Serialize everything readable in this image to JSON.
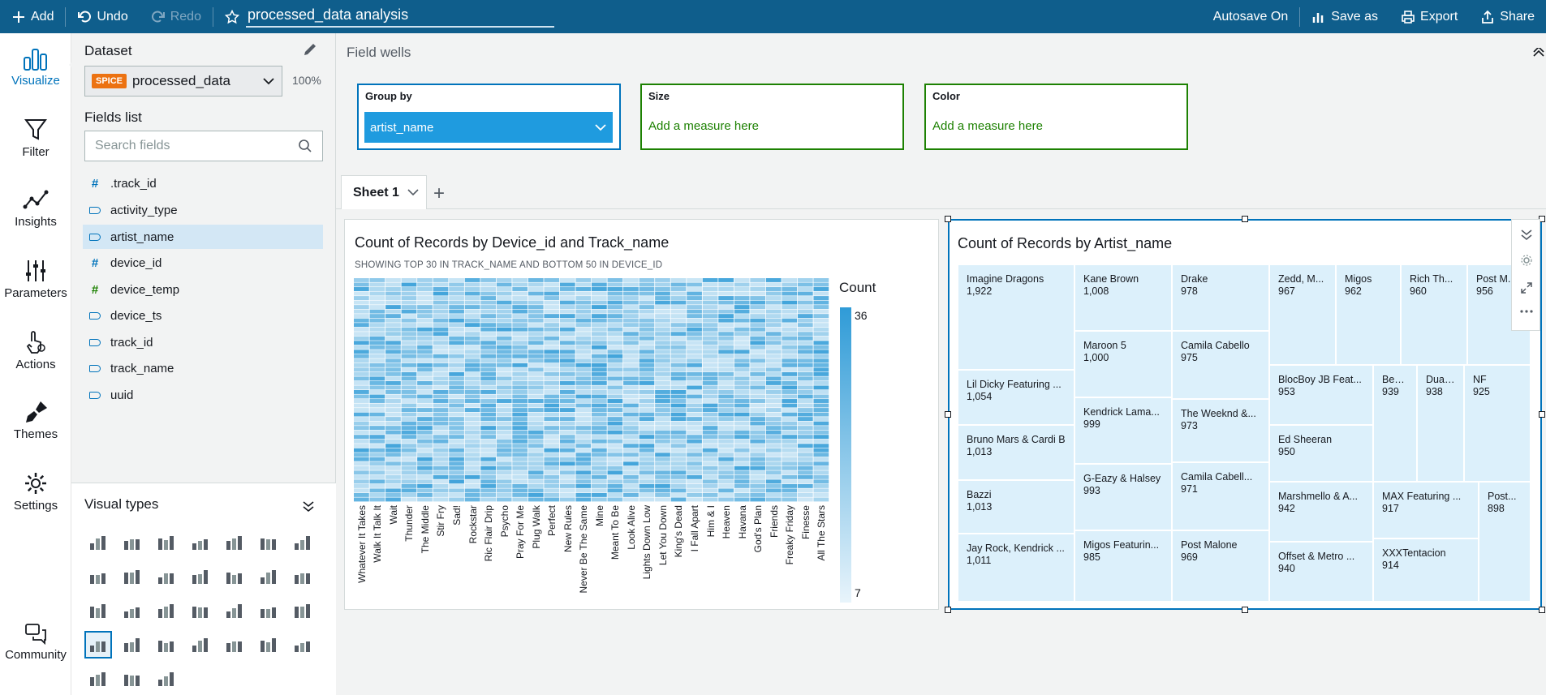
{
  "topbar": {
    "add": "Add",
    "undo": "Undo",
    "redo": "Redo",
    "title": "processed_data analysis",
    "autosave": "Autosave On",
    "save_as": "Save as",
    "export": "Export",
    "share": "Share"
  },
  "nav": {
    "visualize": "Visualize",
    "filter": "Filter",
    "insights": "Insights",
    "parameters": "Parameters",
    "actions": "Actions",
    "themes": "Themes",
    "settings": "Settings",
    "community": "Community"
  },
  "panel": {
    "dataset_label": "Dataset",
    "spice": "SPICE",
    "dataset_name": "processed_data",
    "spice_pct": "100%",
    "fields_label": "Fields list",
    "search_placeholder": "Search fields",
    "fields": [
      ".track_id",
      "activity_type",
      "artist_name",
      "device_id",
      "device_temp",
      "device_ts",
      "track_id",
      "track_name",
      "uuid"
    ],
    "visual_types_label": "Visual types"
  },
  "wells": {
    "title": "Field wells",
    "group_by_label": "Group by",
    "group_by_value": "artist_name",
    "size_label": "Size",
    "size_hint": "Add a measure here",
    "color_label": "Color",
    "color_hint": "Add a measure here"
  },
  "sheet": {
    "tab": "Sheet 1"
  },
  "heatmap": {
    "title": "Count of Records by Device_id and Track_name",
    "subtitle": "SHOWING TOP 30 IN TRACK_NAME AND BOTTOM 50 IN DEVICE_ID",
    "legend_title": "Count",
    "legend_max": "36",
    "legend_min": "7",
    "low_color": "#e8f4fb",
    "high_color": "#2f9bd7"
  },
  "treemap": {
    "title": "Count of Records by Artist_name",
    "tile_color": "#dcf0fb"
  },
  "chart_data": [
    {
      "type": "heatmap",
      "title": "Count of Records by Device_id and Track_name",
      "subtitle": "SHOWING TOP 30 IN TRACK_NAME AND BOTTOM 50 IN DEVICE_ID",
      "x_categories": [
        "Whatever It Takes",
        "Walk It Talk It",
        "Wait",
        "Thunder",
        "The Middle",
        "Stir Fry",
        "Sad!",
        "Rockstar",
        "Ric Flair Drip",
        "Psycho",
        "Pray For Me",
        "Plug Walk",
        "Perfect",
        "New Rules",
        "Never Be The Same",
        "Mine",
        "Meant To Be",
        "Look Alive",
        "Lights Down Low",
        "Let You Down",
        "King's Dead",
        "I Fall Apart",
        "Him & I",
        "Heaven",
        "Havana",
        "God's Plan",
        "Friends",
        "Freaky Friday",
        "Finesse",
        "All The Stars"
      ],
      "color_range": [
        7,
        36
      ],
      "legend": "Count"
    },
    {
      "type": "treemap",
      "title": "Count of Records by Artist_name",
      "items": [
        {
          "label": "Imagine Dragons",
          "value": "1,922"
        },
        {
          "label": "Lil Dicky Featuring ...",
          "value": "1,054"
        },
        {
          "label": "Bruno Mars & Cardi B",
          "value": "1,013"
        },
        {
          "label": "Bazzi",
          "value": "1,013"
        },
        {
          "label": "Jay Rock, Kendrick ...",
          "value": "1,011"
        },
        {
          "label": "Kane Brown",
          "value": "1,008"
        },
        {
          "label": "Maroon 5",
          "value": "1,000"
        },
        {
          "label": "Kendrick Lama...",
          "value": "999"
        },
        {
          "label": "G-Eazy & Halsey",
          "value": "993"
        },
        {
          "label": "Migos Featurin...",
          "value": "985"
        },
        {
          "label": "Drake",
          "value": "978"
        },
        {
          "label": "Camila Cabello",
          "value": "975"
        },
        {
          "label": "The Weeknd &...",
          "value": "973"
        },
        {
          "label": "Camila Cabell...",
          "value": "971"
        },
        {
          "label": "Post Malone",
          "value": "969"
        },
        {
          "label": "Zedd, M...",
          "value": "967"
        },
        {
          "label": "Migos",
          "value": "962"
        },
        {
          "label": "Rich Th...",
          "value": "960"
        },
        {
          "label": "Post M...",
          "value": "956"
        },
        {
          "label": "BlocBoy JB Feat...",
          "value": "953"
        },
        {
          "label": "Ed Sheeran",
          "value": "950"
        },
        {
          "label": "Beb...",
          "value": "939"
        },
        {
          "label": "Dua ...",
          "value": "938"
        },
        {
          "label": "NF",
          "value": "925"
        },
        {
          "label": "Marshmello & A...",
          "value": "942"
        },
        {
          "label": "Offset & Metro ...",
          "value": "940"
        },
        {
          "label": "MAX Featuring ...",
          "value": "917"
        },
        {
          "label": "XXXTentacion",
          "value": "914"
        },
        {
          "label": "Post...",
          "value": "898"
        }
      ]
    }
  ]
}
